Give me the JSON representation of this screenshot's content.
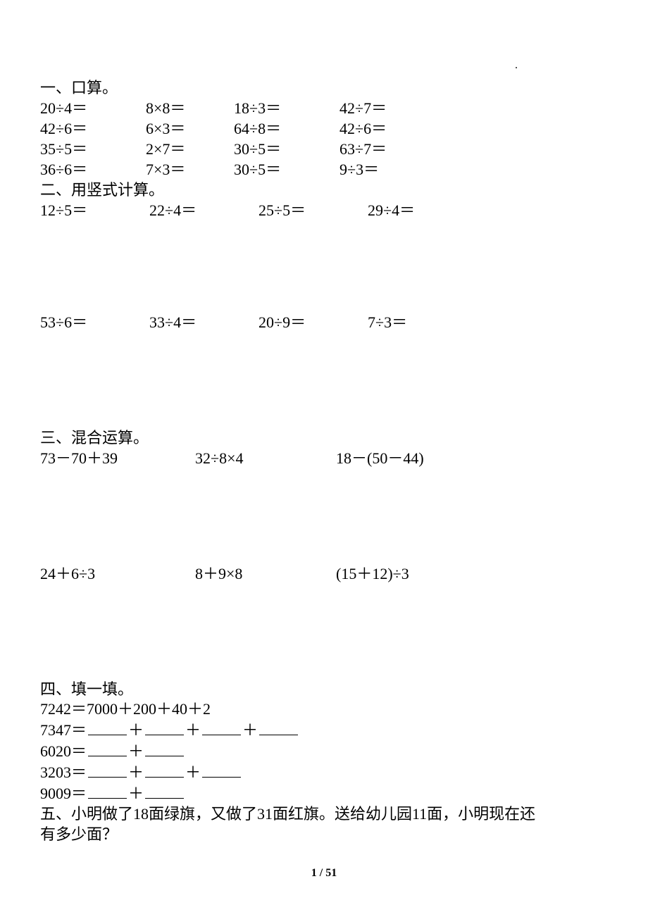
{
  "dot": ".",
  "section1": {
    "title": "一、口算。",
    "rows": [
      [
        "20÷4＝",
        "8×8＝",
        "18÷3＝",
        "42÷7＝"
      ],
      [
        "42÷6＝",
        "6×3＝",
        "64÷8＝",
        "42÷6＝"
      ],
      [
        "35÷5＝",
        "2×7＝",
        "30÷5＝",
        "63÷7＝"
      ],
      [
        "36÷6＝",
        "7×3＝",
        "30÷5＝",
        "9÷3＝"
      ]
    ]
  },
  "section2": {
    "title": "二、用竖式计算。",
    "rows": [
      [
        "12÷5＝",
        "22÷4＝",
        "25÷5＝",
        "29÷4＝"
      ],
      [
        "53÷6＝",
        "33÷4＝",
        "20÷9＝",
        "7÷3＝"
      ]
    ]
  },
  "section3": {
    "title": "三、混合运算。",
    "rows": [
      [
        "73－70＋39",
        "32÷8×4",
        "18－(50－44)"
      ],
      [
        "24＋6÷3",
        "8＋9×8",
        "(15＋12)÷3"
      ]
    ]
  },
  "section4": {
    "title": "四、填一填。",
    "example": "7242＝7000＋200＋40＋2",
    "lines": [
      {
        "lhs": "7347＝",
        "blanks": 4
      },
      {
        "lhs": "6020＝",
        "blanks": 2
      },
      {
        "lhs": "3203＝",
        "blanks": 3
      },
      {
        "lhs": "9009＝",
        "blanks": 2
      }
    ],
    "plus": "＋"
  },
  "section5": {
    "line1": "五、小明做了18面绿旗，又做了31面红旗。送给幼儿园11面，小明现在还",
    "line2": "有多少面？"
  },
  "footer": {
    "page": "1",
    "sep": " / ",
    "total": "51"
  }
}
